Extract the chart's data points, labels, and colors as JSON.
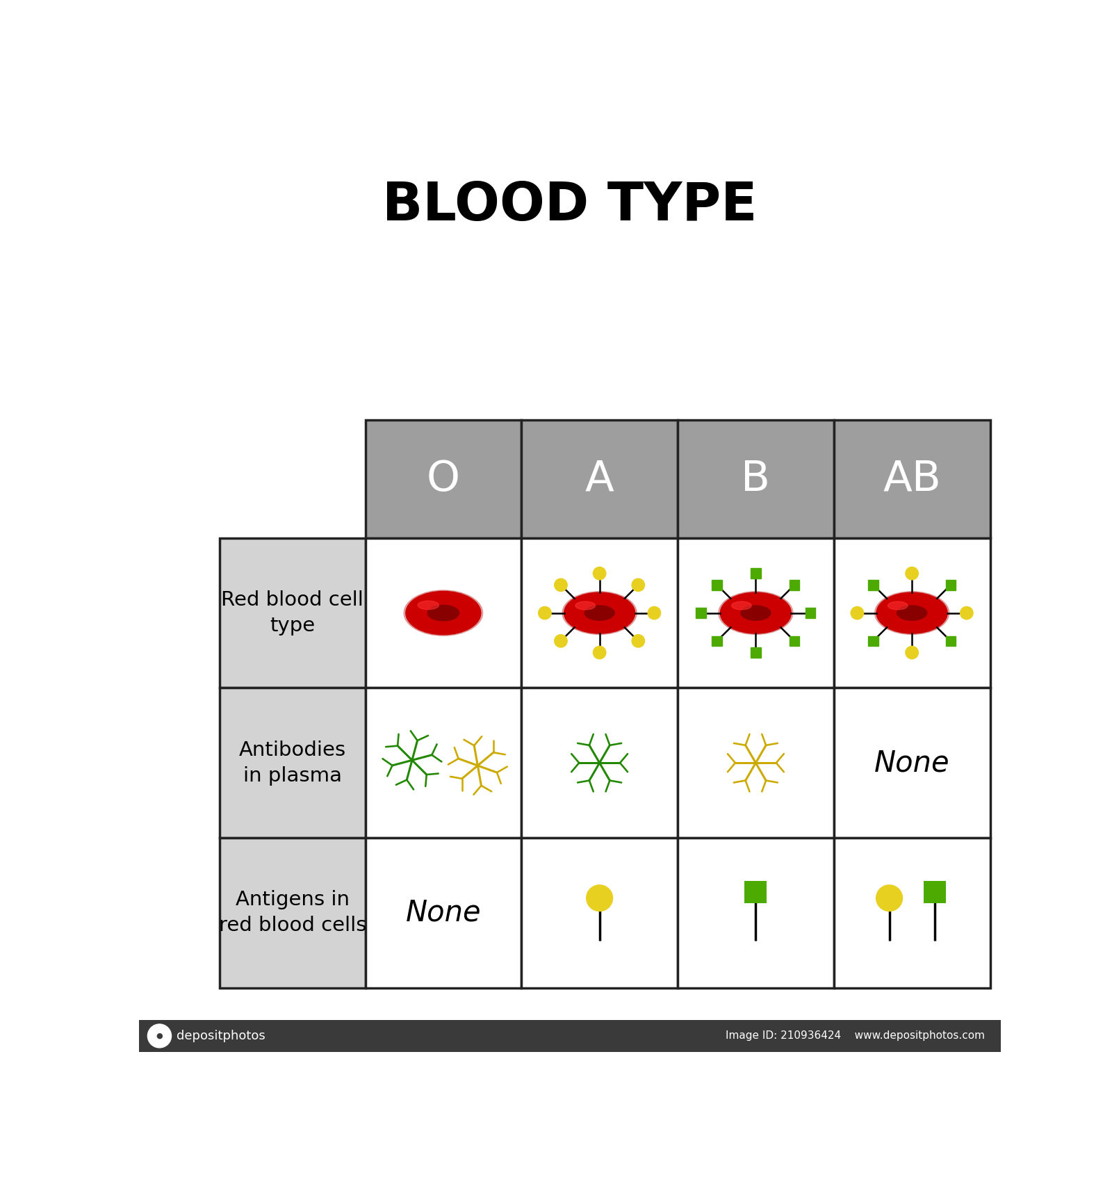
{
  "title": "BLOOD TYPE",
  "blood_types": [
    "O",
    "A",
    "B",
    "AB"
  ],
  "row_labels": [
    "Red blood cell\ntype",
    "Antibodies\nin plasma",
    "Antigens in\nred blood cells"
  ],
  "header_color": "#9e9e9e",
  "label_bg_color": "#d3d3d3",
  "cell_bg_color": "#ffffff",
  "header_text_color": "#ffffff",
  "label_text_color": "#000000",
  "red_cell_color": "#cc0000",
  "red_cell_dark": "#880000",
  "red_cell_highlight": "#ff3333",
  "antigen_yellow": "#e8d020",
  "antigen_green": "#4daa00",
  "antibody_green": "#228800",
  "antibody_yellow": "#ccaa00",
  "black": "#000000",
  "background": "#ffffff",
  "border_color": "#222222",
  "bottom_bar_color": "#3a3a3a"
}
